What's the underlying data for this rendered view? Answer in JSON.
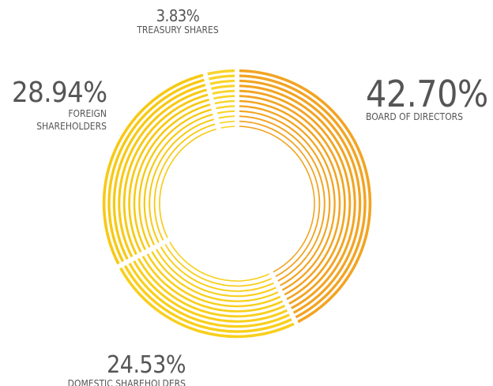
{
  "chart_data": {
    "type": "pie",
    "categories": [
      "BOARD OF DIRECTORS",
      "DOMESTIC SHAREHOLDERS",
      "FOREIGN SHAREHOLDERS",
      "TREASURY SHARES"
    ],
    "values": [
      42.7,
      24.53,
      28.94,
      3.83
    ],
    "value_labels": [
      "42.70%",
      "24.53%",
      "28.94%",
      "3.83%"
    ],
    "colors": [
      "#f2a423",
      "#f8cf1c",
      "#f7c914",
      "#f9d42a"
    ]
  }
}
